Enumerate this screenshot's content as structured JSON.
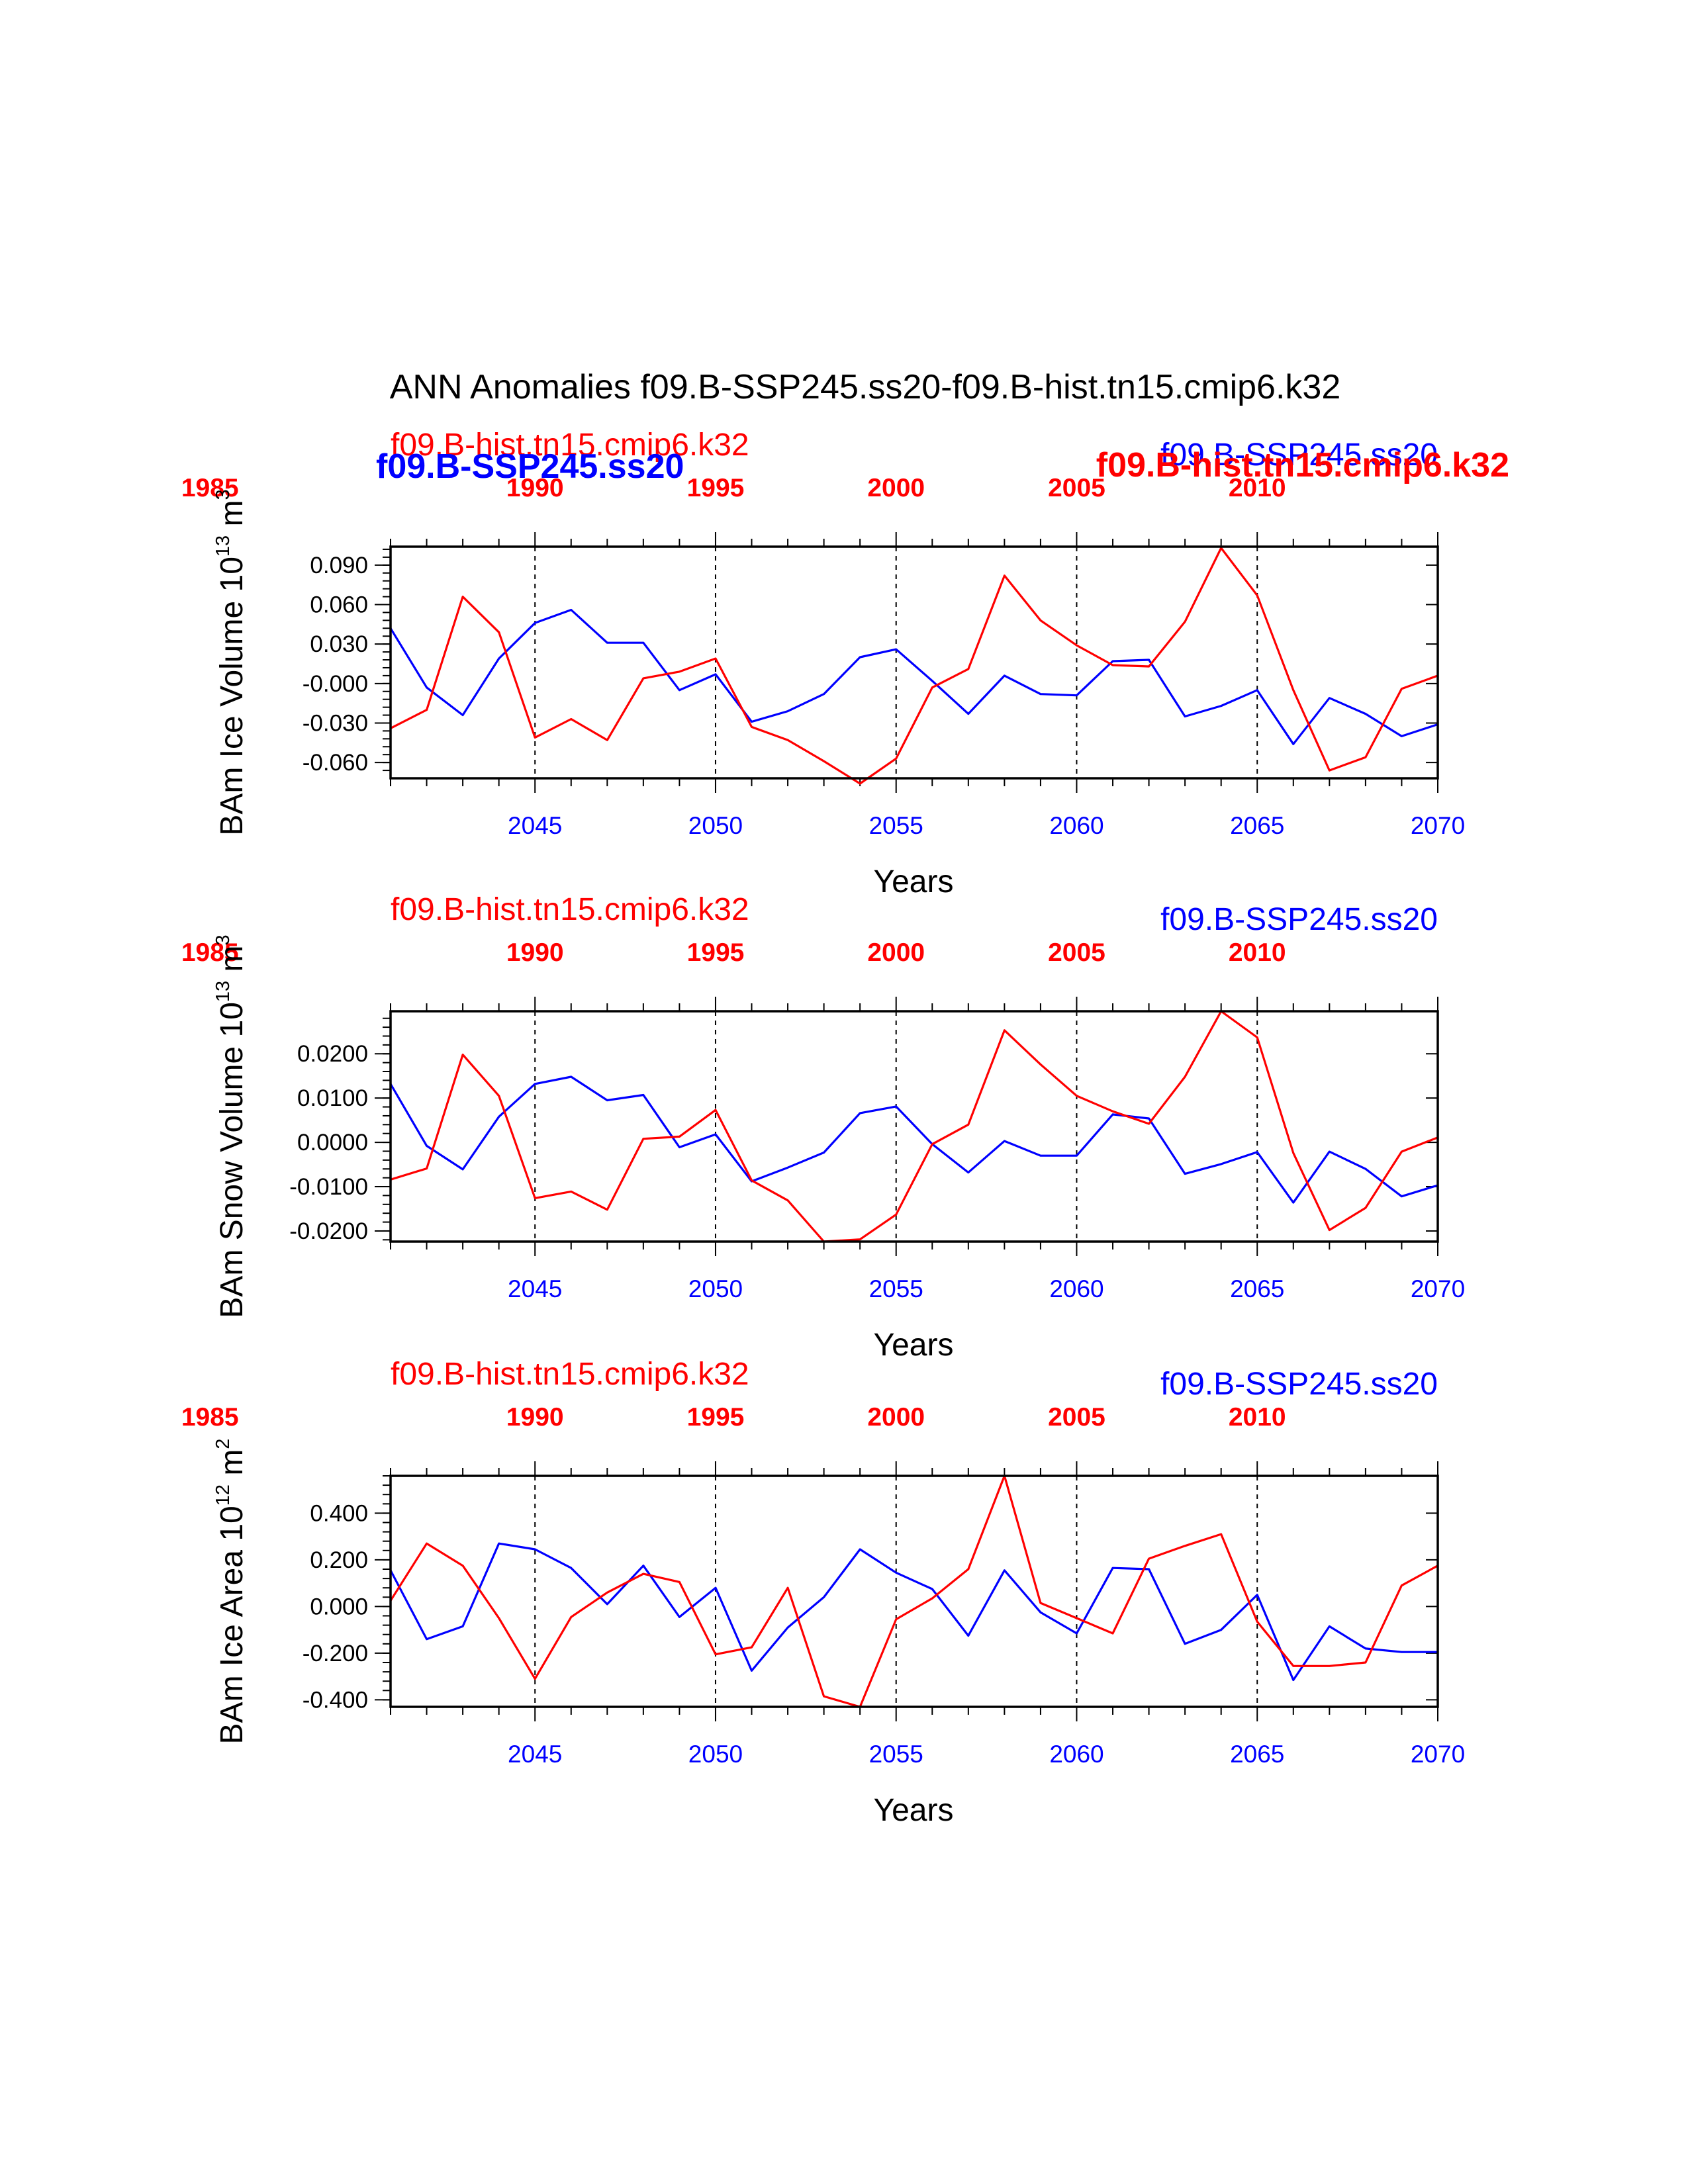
{
  "figure": {
    "title": "ANN Anomalies f09.B-SSP245.ss20-f09.B-hist.tn15.cmip6.k32",
    "colors": {
      "ssp": "#0000ff",
      "hist": "#ff0000",
      "axes": "#000000"
    }
  },
  "chart_data": [
    {
      "type": "line",
      "ylabel_main": "BAm Ice Volume 10",
      "ylabel_sup": "13",
      "ylabel_unit": " m",
      "ylabel_unit_sup": "3",
      "xlabel": "Years",
      "hist_label": "f09.B-hist.tn15.cmip6.k32",
      "ssp_label": "f09.B-SSP245.ss20",
      "overlay_labels": [
        "f09.B-SSP245.ss20",
        "f09.B-hist.tn15.cmip6.k32"
      ],
      "ylim": [
        -0.072,
        0.104
      ],
      "yticks": [
        0.09,
        0.06,
        0.03,
        0.0,
        -0.03,
        -0.06
      ],
      "ytick_labels": [
        "0.090",
        "0.060",
        "0.030",
        "-0.000",
        "-0.030",
        "-0.060"
      ],
      "xlim": [
        2041,
        2070
      ],
      "bottom_ticks": [
        2045,
        2050,
        2055,
        2060,
        2065,
        2070
      ],
      "top_ticks": [
        1985,
        1990,
        1995,
        2000,
        2005,
        2010
      ],
      "grid_x": [
        2045,
        2050,
        2055,
        2060,
        2065
      ],
      "series": [
        {
          "name": "f09.B-SSP245.ss20",
          "key": "ssp",
          "x": [
            2041,
            2042,
            2043,
            2044,
            2045,
            2046,
            2047,
            2048,
            2049,
            2050,
            2051,
            2052,
            2053,
            2054,
            2055,
            2056,
            2057,
            2058,
            2059,
            2060,
            2061,
            2062,
            2063,
            2064,
            2065,
            2066,
            2067,
            2068,
            2069,
            2070
          ],
          "values": [
            0.042,
            -0.003,
            -0.024,
            0.019,
            0.046,
            0.056,
            0.031,
            0.031,
            -0.005,
            0.007,
            -0.029,
            -0.021,
            -0.008,
            0.02,
            0.026,
            0.002,
            -0.023,
            0.006,
            -0.008,
            -0.009,
            0.017,
            0.018,
            -0.025,
            -0.017,
            -0.005,
            -0.046,
            -0.011,
            -0.023,
            -0.04,
            -0.031
          ]
        },
        {
          "name": "f09.B-hist.tn15.cmip6.k32",
          "key": "hist",
          "x": [
            2041,
            2042,
            2043,
            2044,
            2045,
            2046,
            2047,
            2048,
            2049,
            2050,
            2051,
            2052,
            2053,
            2054,
            2055,
            2056,
            2057,
            2058,
            2059,
            2060,
            2061,
            2062,
            2063,
            2064,
            2065,
            2066,
            2067,
            2068,
            2069,
            2070
          ],
          "values": [
            -0.034,
            -0.02,
            0.066,
            0.039,
            -0.041,
            -0.027,
            -0.043,
            0.004,
            0.009,
            0.019,
            -0.033,
            -0.043,
            -0.059,
            -0.076,
            -0.057,
            -0.003,
            0.011,
            0.082,
            0.048,
            0.029,
            0.014,
            0.013,
            0.047,
            0.103,
            0.067,
            -0.005,
            -0.066,
            -0.056,
            -0.004,
            0.006
          ]
        }
      ]
    },
    {
      "type": "line",
      "ylabel_main": "BAm Snow Volume 10",
      "ylabel_sup": "13",
      "ylabel_unit": " m",
      "ylabel_unit_sup": "3",
      "xlabel": "Years",
      "hist_label": "f09.B-hist.tn15.cmip6.k32",
      "ssp_label": "f09.B-SSP245.ss20",
      "overlay_labels": [],
      "ylim": [
        -0.0224,
        0.0296
      ],
      "yticks": [
        0.02,
        0.01,
        0.0,
        -0.01,
        -0.02
      ],
      "ytick_labels": [
        "0.0200",
        "0.0100",
        "0.0000",
        "-0.0100",
        "-0.0200"
      ],
      "xlim": [
        2041,
        2070
      ],
      "bottom_ticks": [
        2045,
        2050,
        2055,
        2060,
        2065,
        2070
      ],
      "top_ticks": [
        1985,
        1990,
        1995,
        2000,
        2005,
        2010
      ],
      "grid_x": [
        2045,
        2050,
        2055,
        2060,
        2065
      ],
      "series": [
        {
          "name": "f09.B-SSP245.ss20",
          "key": "ssp",
          "x": [
            2041,
            2042,
            2043,
            2044,
            2045,
            2046,
            2047,
            2048,
            2049,
            2050,
            2051,
            2052,
            2053,
            2054,
            2055,
            2056,
            2057,
            2058,
            2059,
            2060,
            2061,
            2062,
            2063,
            2064,
            2065,
            2066,
            2067,
            2068,
            2069,
            2070
          ],
          "values": [
            0.0132,
            -0.0008,
            -0.0061,
            0.0058,
            0.0132,
            0.0148,
            0.0095,
            0.0107,
            -0.0011,
            0.0018,
            -0.0088,
            -0.0057,
            -0.0023,
            0.0066,
            0.0081,
            -0.0004,
            -0.0068,
            0.0003,
            -0.003,
            -0.003,
            0.0063,
            0.0054,
            -0.0071,
            -0.0049,
            -0.0022,
            -0.0136,
            -0.0021,
            -0.006,
            -0.0122,
            -0.0097
          ]
        },
        {
          "name": "f09.B-hist.tn15.cmip6.k32",
          "key": "hist",
          "x": [
            2041,
            2042,
            2043,
            2044,
            2045,
            2046,
            2047,
            2048,
            2049,
            2050,
            2051,
            2052,
            2053,
            2054,
            2055,
            2056,
            2057,
            2058,
            2059,
            2060,
            2061,
            2062,
            2063,
            2064,
            2065,
            2066,
            2067,
            2068,
            2069,
            2070
          ],
          "values": [
            -0.0084,
            -0.0059,
            0.0198,
            0.0105,
            -0.0126,
            -0.0111,
            -0.0152,
            0.0008,
            0.0013,
            0.0073,
            -0.0086,
            -0.0131,
            -0.0224,
            -0.0219,
            -0.0163,
            -0.0004,
            0.004,
            0.0253,
            0.0176,
            0.0105,
            0.007,
            0.0042,
            0.0148,
            0.0296,
            0.0237,
            -0.0024,
            -0.0198,
            -0.0148,
            -0.0021,
            0.0011
          ]
        }
      ]
    },
    {
      "type": "line",
      "ylabel_main": "BAm Ice Area 10",
      "ylabel_sup": "12",
      "ylabel_unit": " m",
      "ylabel_unit_sup": "2",
      "xlabel": "Years",
      "hist_label": "f09.B-hist.tn15.cmip6.k32",
      "ssp_label": "f09.B-SSP245.ss20",
      "overlay_labels": [],
      "ylim": [
        -0.43,
        0.56
      ],
      "yticks": [
        0.4,
        0.2,
        0.0,
        -0.2,
        -0.4
      ],
      "ytick_labels": [
        "0.400",
        "0.200",
        "0.000",
        "-0.200",
        "-0.400"
      ],
      "xlim": [
        2041,
        2070
      ],
      "bottom_ticks": [
        2045,
        2050,
        2055,
        2060,
        2065,
        2070
      ],
      "top_ticks": [
        1985,
        1990,
        1995,
        2000,
        2005,
        2010
      ],
      "grid_x": [
        2045,
        2050,
        2055,
        2060,
        2065
      ],
      "series": [
        {
          "name": "f09.B-SSP245.ss20",
          "key": "ssp",
          "x": [
            2041,
            2042,
            2043,
            2044,
            2045,
            2046,
            2047,
            2048,
            2049,
            2050,
            2051,
            2052,
            2053,
            2054,
            2055,
            2056,
            2057,
            2058,
            2059,
            2060,
            2061,
            2062,
            2063,
            2064,
            2065,
            2066,
            2067,
            2068,
            2069,
            2070
          ],
          "values": [
            0.155,
            -0.14,
            -0.085,
            0.27,
            0.245,
            0.165,
            0.01,
            0.175,
            -0.045,
            0.08,
            -0.275,
            -0.09,
            0.04,
            0.245,
            0.145,
            0.075,
            -0.125,
            0.155,
            -0.025,
            -0.115,
            0.165,
            0.16,
            -0.16,
            -0.1,
            0.05,
            -0.315,
            -0.085,
            -0.18,
            -0.195,
            -0.195
          ]
        },
        {
          "name": "f09.B-hist.tn15.cmip6.k32",
          "key": "hist",
          "x": [
            2041,
            2042,
            2043,
            2044,
            2045,
            2046,
            2047,
            2048,
            2049,
            2050,
            2051,
            2052,
            2053,
            2054,
            2055,
            2056,
            2057,
            2058,
            2059,
            2060,
            2061,
            2062,
            2063,
            2064,
            2065,
            2066,
            2067,
            2068,
            2069,
            2070
          ],
          "values": [
            0.025,
            0.27,
            0.175,
            -0.05,
            -0.31,
            -0.045,
            0.06,
            0.14,
            0.105,
            -0.205,
            -0.175,
            0.08,
            -0.385,
            -0.43,
            -0.055,
            0.035,
            0.16,
            0.56,
            0.015,
            -0.05,
            -0.115,
            0.205,
            0.26,
            0.31,
            -0.065,
            -0.255,
            -0.255,
            -0.24,
            0.09,
            0.175
          ]
        }
      ]
    }
  ]
}
